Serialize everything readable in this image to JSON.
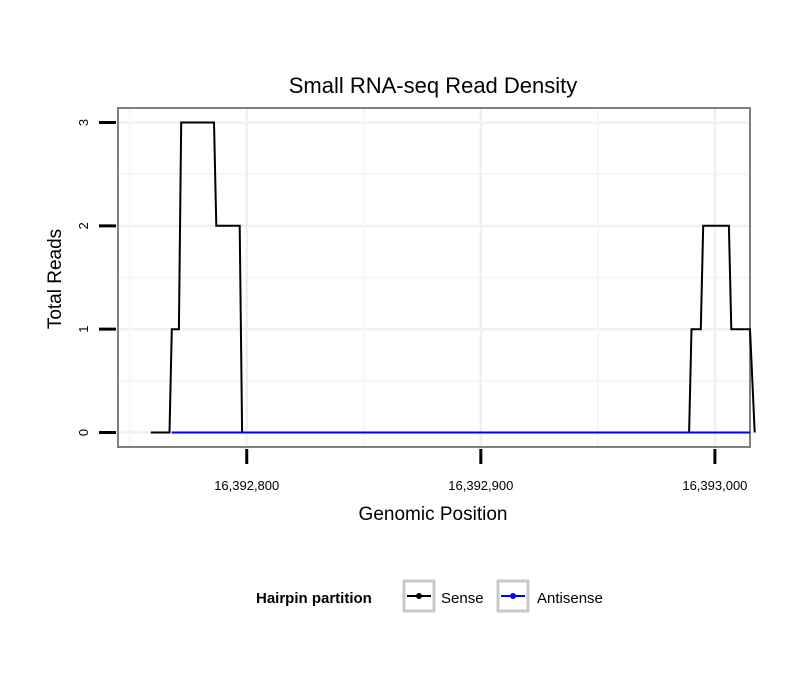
{
  "chart_data": {
    "type": "line",
    "title": "Small RNA-seq Read Density",
    "xlabel": "Genomic Position",
    "ylabel": "Total Reads",
    "xlim": [
      16392745,
      16393015
    ],
    "ylim": [
      -0.14,
      3.14
    ],
    "x_ticks": [
      16392800,
      16392900,
      16393000
    ],
    "x_tick_labels": [
      "16,392,800",
      "16,392,900",
      "16,393,000"
    ],
    "y_ticks": [
      0,
      1,
      2,
      3
    ],
    "y_tick_labels": [
      "0",
      "1",
      "2",
      "3"
    ],
    "grid": true,
    "legend_title": "Hairpin partition",
    "legend_position": "bottom",
    "series": [
      {
        "name": "Sense",
        "color": "#000000",
        "x": [
          16392759,
          16392767,
          16392768,
          16392771,
          16392772,
          16392786,
          16392787,
          16392797,
          16392798,
          16392849,
          16392850,
          16392959,
          16392989,
          16392990,
          16392994,
          16392995,
          16393006,
          16393007,
          16393015,
          16393017
        ],
        "y": [
          0,
          0,
          1,
          1,
          3,
          3,
          2,
          2,
          0,
          0,
          0,
          0,
          0,
          1,
          1,
          2,
          2,
          1,
          1,
          0
        ]
      },
      {
        "name": "Antisense",
        "color": "#0000ff",
        "x": [
          16392768,
          16392798,
          16392989,
          16393015
        ],
        "y": [
          0,
          0,
          0,
          0
        ]
      }
    ]
  }
}
